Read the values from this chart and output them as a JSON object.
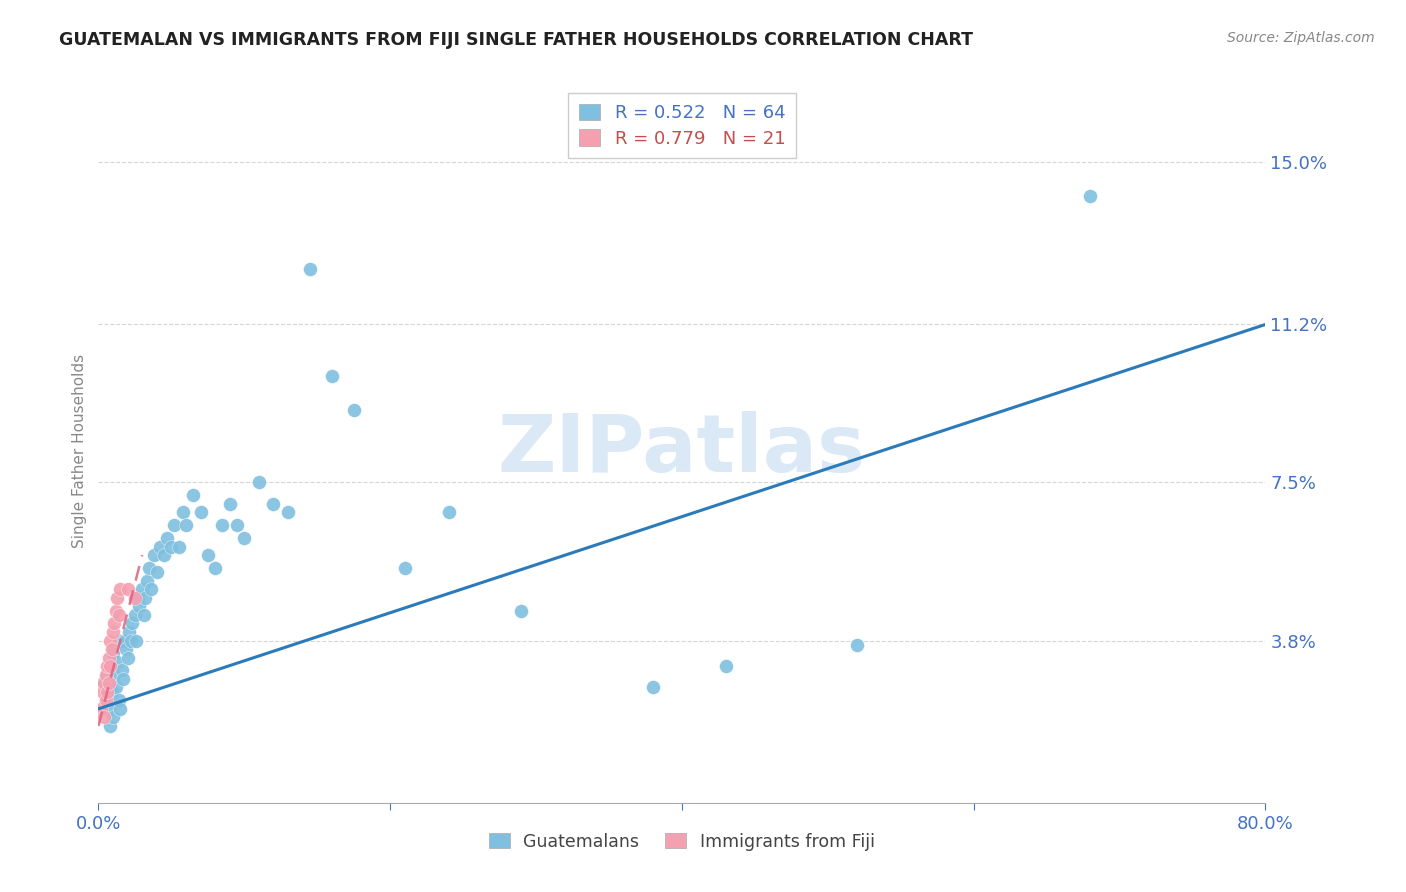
{
  "title": "GUATEMALAN VS IMMIGRANTS FROM FIJI SINGLE FATHER HOUSEHOLDS CORRELATION CHART",
  "source": "Source: ZipAtlas.com",
  "ylabel": "Single Father Households",
  "xlim": [
    0,
    0.8
  ],
  "ylim": [
    0,
    0.165
  ],
  "yticks": [
    0.038,
    0.075,
    0.112,
    0.15
  ],
  "ytick_labels": [
    "3.8%",
    "7.5%",
    "11.2%",
    "15.0%"
  ],
  "xticks": [
    0.0,
    0.2,
    0.4,
    0.6,
    0.8
  ],
  "legend_r1": "R = 0.522",
  "legend_n1": "N = 64",
  "legend_r2": "R = 0.779",
  "legend_n2": "N = 21",
  "blue_color": "#7fbfdf",
  "pink_color": "#f4a0b0",
  "trend_blue": "#2b7bba",
  "trend_pink": "#e06080",
  "watermark": "ZIPatlas",
  "blue_x": [
    0.003,
    0.005,
    0.006,
    0.007,
    0.008,
    0.008,
    0.009,
    0.01,
    0.01,
    0.011,
    0.012,
    0.013,
    0.014,
    0.015,
    0.015,
    0.016,
    0.017,
    0.018,
    0.019,
    0.02,
    0.021,
    0.022,
    0.023,
    0.025,
    0.026,
    0.027,
    0.028,
    0.03,
    0.031,
    0.032,
    0.033,
    0.035,
    0.036,
    0.038,
    0.04,
    0.042,
    0.045,
    0.047,
    0.05,
    0.052,
    0.055,
    0.058,
    0.06,
    0.065,
    0.07,
    0.075,
    0.08,
    0.085,
    0.09,
    0.095,
    0.1,
    0.11,
    0.12,
    0.13,
    0.145,
    0.16,
    0.175,
    0.21,
    0.24,
    0.29,
    0.38,
    0.43,
    0.52,
    0.68
  ],
  "blue_y": [
    0.028,
    0.025,
    0.03,
    0.022,
    0.032,
    0.018,
    0.026,
    0.02,
    0.035,
    0.03,
    0.027,
    0.033,
    0.024,
    0.038,
    0.022,
    0.031,
    0.029,
    0.038,
    0.036,
    0.034,
    0.04,
    0.038,
    0.042,
    0.044,
    0.038,
    0.048,
    0.046,
    0.05,
    0.044,
    0.048,
    0.052,
    0.055,
    0.05,
    0.058,
    0.054,
    0.06,
    0.058,
    0.062,
    0.06,
    0.065,
    0.06,
    0.068,
    0.065,
    0.072,
    0.068,
    0.058,
    0.055,
    0.065,
    0.07,
    0.065,
    0.062,
    0.075,
    0.07,
    0.068,
    0.125,
    0.1,
    0.092,
    0.055,
    0.068,
    0.045,
    0.027,
    0.032,
    0.037,
    0.142
  ],
  "pink_x": [
    0.002,
    0.003,
    0.004,
    0.004,
    0.005,
    0.005,
    0.006,
    0.006,
    0.007,
    0.007,
    0.008,
    0.008,
    0.009,
    0.01,
    0.011,
    0.012,
    0.013,
    0.014,
    0.015,
    0.02,
    0.025
  ],
  "pink_y": [
    0.022,
    0.026,
    0.028,
    0.02,
    0.024,
    0.03,
    0.032,
    0.026,
    0.034,
    0.028,
    0.038,
    0.032,
    0.036,
    0.04,
    0.042,
    0.045,
    0.048,
    0.044,
    0.05,
    0.05,
    0.048
  ],
  "blue_trend_x": [
    0.0,
    0.8
  ],
  "blue_trend_y": [
    0.022,
    0.112
  ],
  "pink_trend_x": [
    0.0,
    0.03
  ],
  "pink_trend_y": [
    0.018,
    0.058
  ]
}
